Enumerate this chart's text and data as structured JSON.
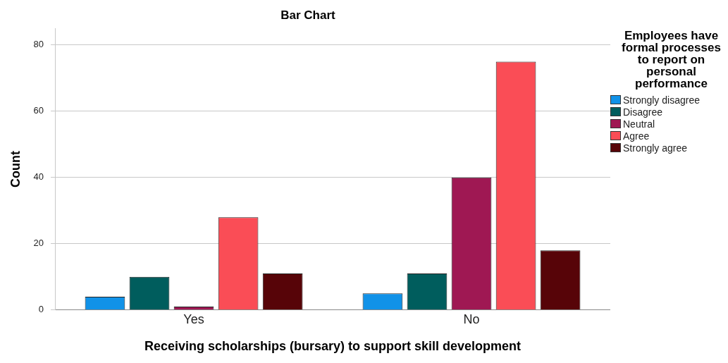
{
  "chart_data": {
    "type": "bar",
    "title": "Bar Chart",
    "xlabel": "Receiving scholarships (bursary) to support skill development",
    "ylabel": "Count",
    "legend_title": "Employees have formal processes to report on personal performance",
    "legend": "right",
    "grid": "y",
    "categories": [
      "Yes",
      "No"
    ],
    "ylim": [
      0,
      85
    ],
    "yticks": [
      0,
      20,
      40,
      60,
      80
    ],
    "series": [
      {
        "name": "Strongly disagree",
        "color": "#1192e8",
        "values": [
          4,
          5
        ]
      },
      {
        "name": "Disagree",
        "color": "#005d5d",
        "values": [
          10,
          11
        ]
      },
      {
        "name": "Neutral",
        "color": "#9f1853",
        "values": [
          1,
          40
        ]
      },
      {
        "name": "Agree",
        "color": "#fa4d56",
        "values": [
          28,
          75
        ]
      },
      {
        "name": "Strongly agree",
        "color": "#570408",
        "values": [
          11,
          18
        ]
      }
    ]
  }
}
